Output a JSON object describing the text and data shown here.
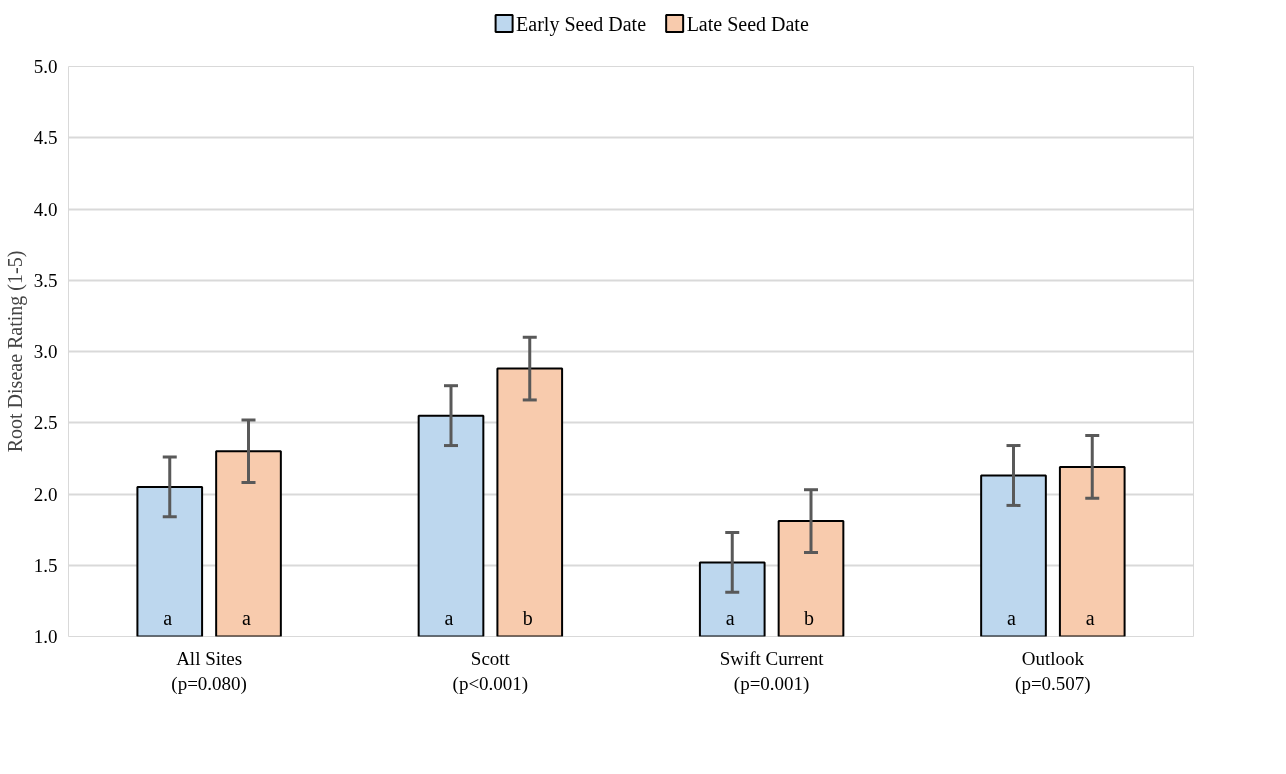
{
  "chart_data": {
    "type": "bar",
    "ylabel": "Root Diseae Rating (1-5)",
    "categories": [
      "All Sites\n(p=0.080)",
      "Scott\n(p<0.001)",
      "Swift Current\n(p=0.001)",
      "Outlook\n(p=0.507)"
    ],
    "series": [
      {
        "name": "Early Seed Date",
        "color": "#bdd7ee",
        "values": [
          2.05,
          2.55,
          1.52,
          2.13
        ],
        "errors": [
          0.21,
          0.21,
          0.21,
          0.21
        ],
        "value_labels": [
          "a",
          "a",
          "a",
          "a"
        ]
      },
      {
        "name": "Late Seed Date",
        "color": "#f8cbad",
        "values": [
          2.3,
          2.88,
          1.81,
          2.19
        ],
        "errors": [
          0.22,
          0.22,
          0.22,
          0.22
        ],
        "value_labels": [
          "a",
          "b",
          "b",
          "a"
        ]
      }
    ],
    "ylim": [
      1.0,
      5.0
    ],
    "yticks": [
      {
        "value": 1.0,
        "label": "1.0"
      },
      {
        "value": 1.5,
        "label": "1.5"
      },
      {
        "value": 2.0,
        "label": "2.0"
      },
      {
        "value": 2.5,
        "label": "2.5"
      },
      {
        "value": 3.0,
        "label": "3.0"
      },
      {
        "value": 3.5,
        "label": "3.5"
      },
      {
        "value": 4.0,
        "label": "4.0"
      },
      {
        "value": 4.5,
        "label": "4.5"
      },
      {
        "value": 5.0,
        "label": "5.0"
      }
    ],
    "grid": "y",
    "legend": "top"
  }
}
